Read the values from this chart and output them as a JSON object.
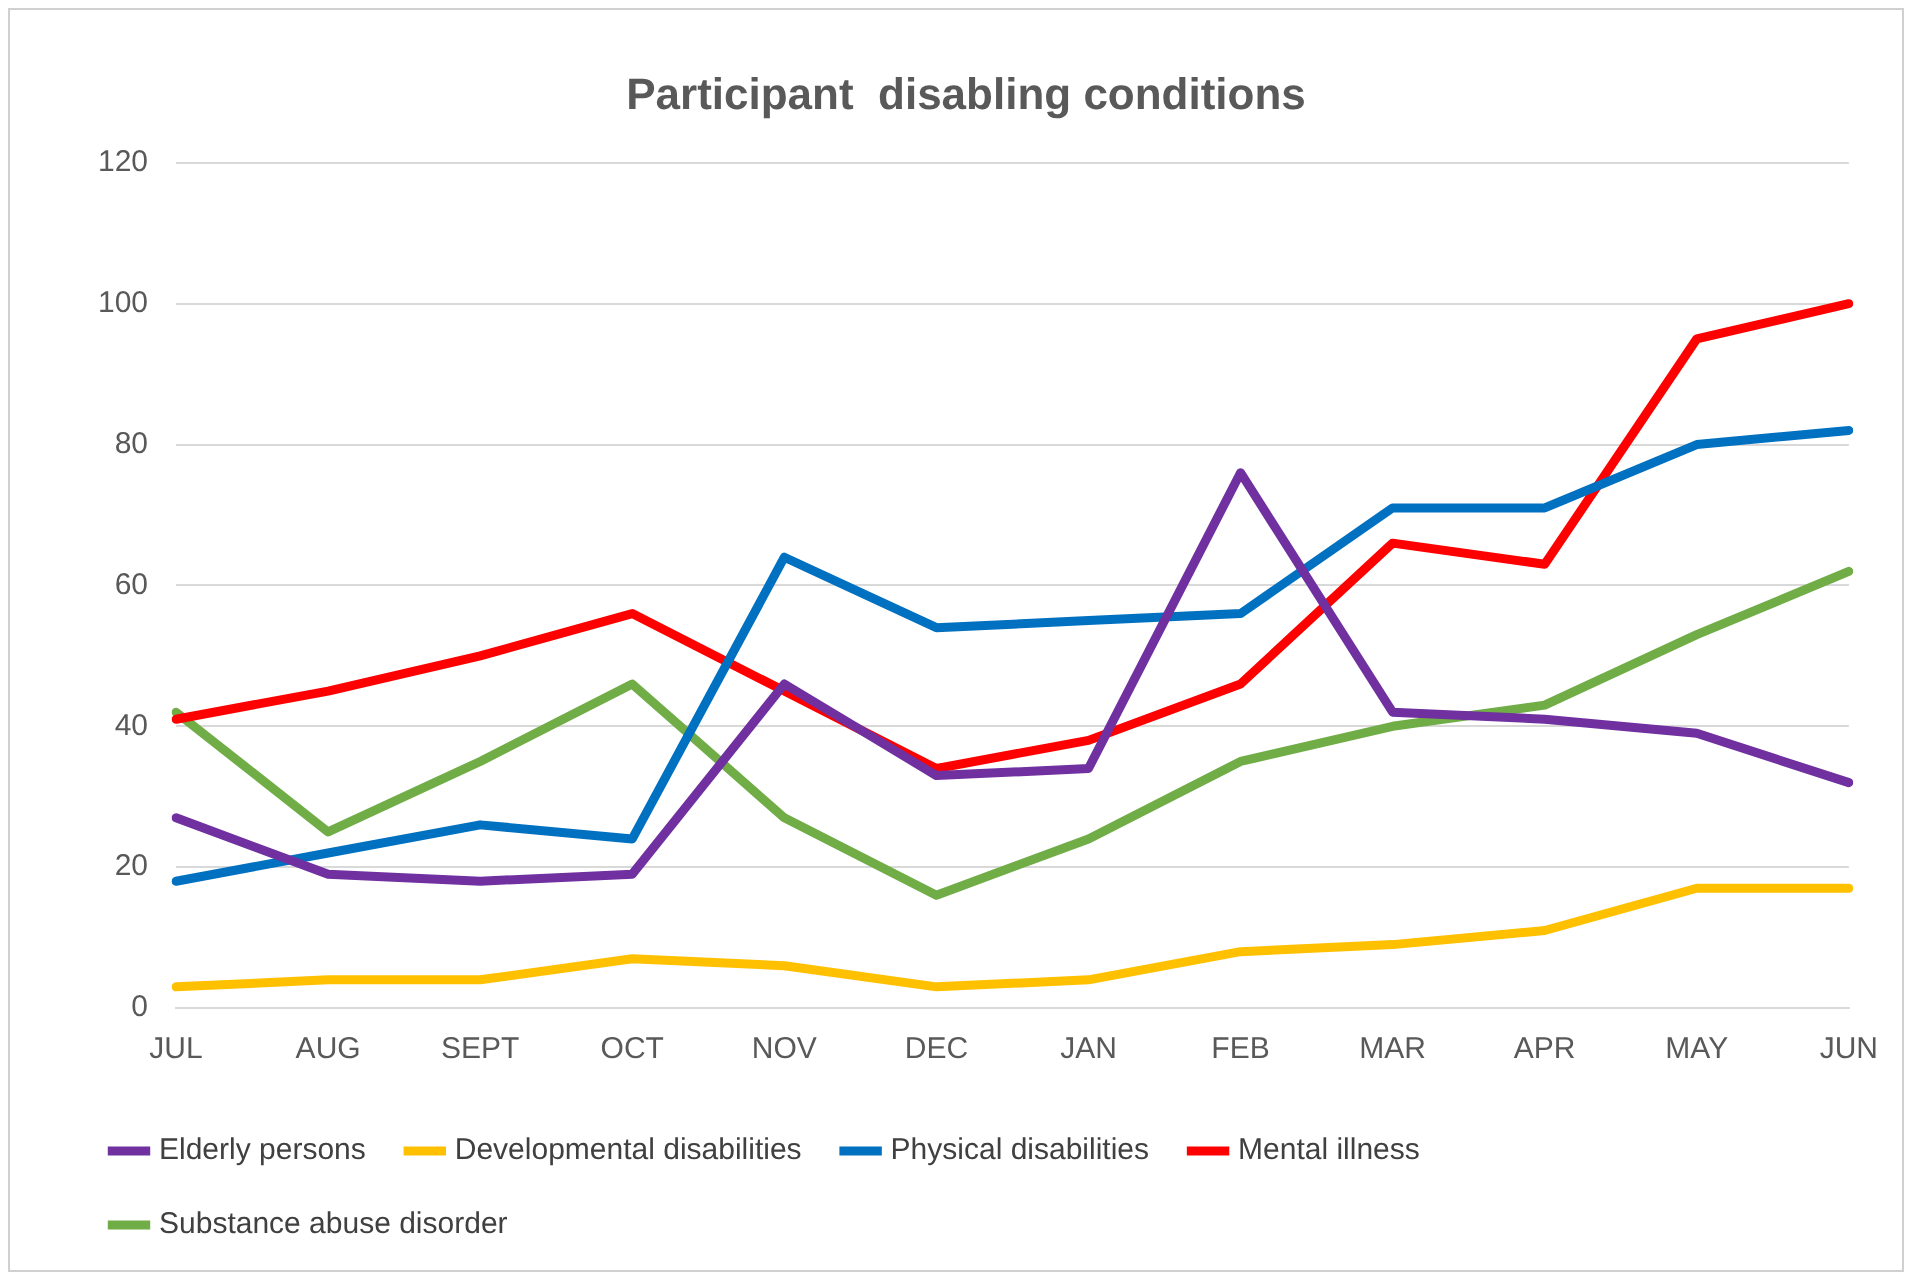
{
  "chart_data": {
    "type": "line",
    "title": "Participant  disabling conditions",
    "categories": [
      "JUL",
      "AUG",
      "SEPT",
      "OCT",
      "NOV",
      "DEC",
      "JAN",
      "FEB",
      "MAR",
      "APR",
      "MAY",
      "JUN"
    ],
    "series": [
      {
        "name": "Elderly persons",
        "color": "#7030a0",
        "values": [
          27,
          19,
          18,
          19,
          46,
          33,
          34,
          76,
          42,
          41,
          39,
          32
        ]
      },
      {
        "name": "Developmental disabilities",
        "color": "#ffc000",
        "values": [
          3,
          4,
          4,
          7,
          6,
          3,
          4,
          8,
          9,
          11,
          17,
          17
        ]
      },
      {
        "name": "Physical disabilities",
        "color": "#0070c0",
        "values": [
          18,
          22,
          26,
          24,
          64,
          54,
          55,
          56,
          71,
          71,
          80,
          82
        ]
      },
      {
        "name": "Mental illness",
        "color": "#ff0000",
        "values": [
          41,
          45,
          50,
          56,
          45,
          34,
          38,
          46,
          66,
          63,
          95,
          100
        ]
      },
      {
        "name": "Substance abuse disorder",
        "color": "#70ad47",
        "values": [
          42,
          25,
          35,
          46,
          27,
          16,
          24,
          35,
          40,
          43,
          53,
          62
        ]
      }
    ],
    "ylim": [
      0,
      120
    ],
    "yticks": [
      0,
      20,
      40,
      60,
      80,
      100,
      120
    ],
    "grid": "y",
    "legend": "bottom",
    "marker": "none",
    "line_style": "solid"
  }
}
